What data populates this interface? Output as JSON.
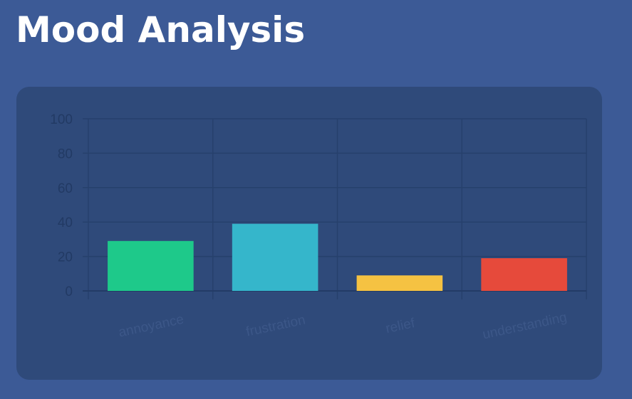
{
  "page": {
    "title": "Mood Analysis"
  },
  "chart_data": {
    "type": "bar",
    "title": "",
    "xlabel": "",
    "ylabel": "",
    "categories": [
      "annoyance",
      "frustration",
      "relief",
      "understanding"
    ],
    "values": [
      29,
      39,
      9,
      19
    ],
    "colors": [
      "#1ec98a",
      "#35b6cb",
      "#f5c242",
      "#e64a3b"
    ],
    "ylim": [
      0,
      100
    ],
    "yticks": [
      0,
      20,
      40,
      60,
      80,
      100
    ],
    "grid": true,
    "legend": "none"
  }
}
